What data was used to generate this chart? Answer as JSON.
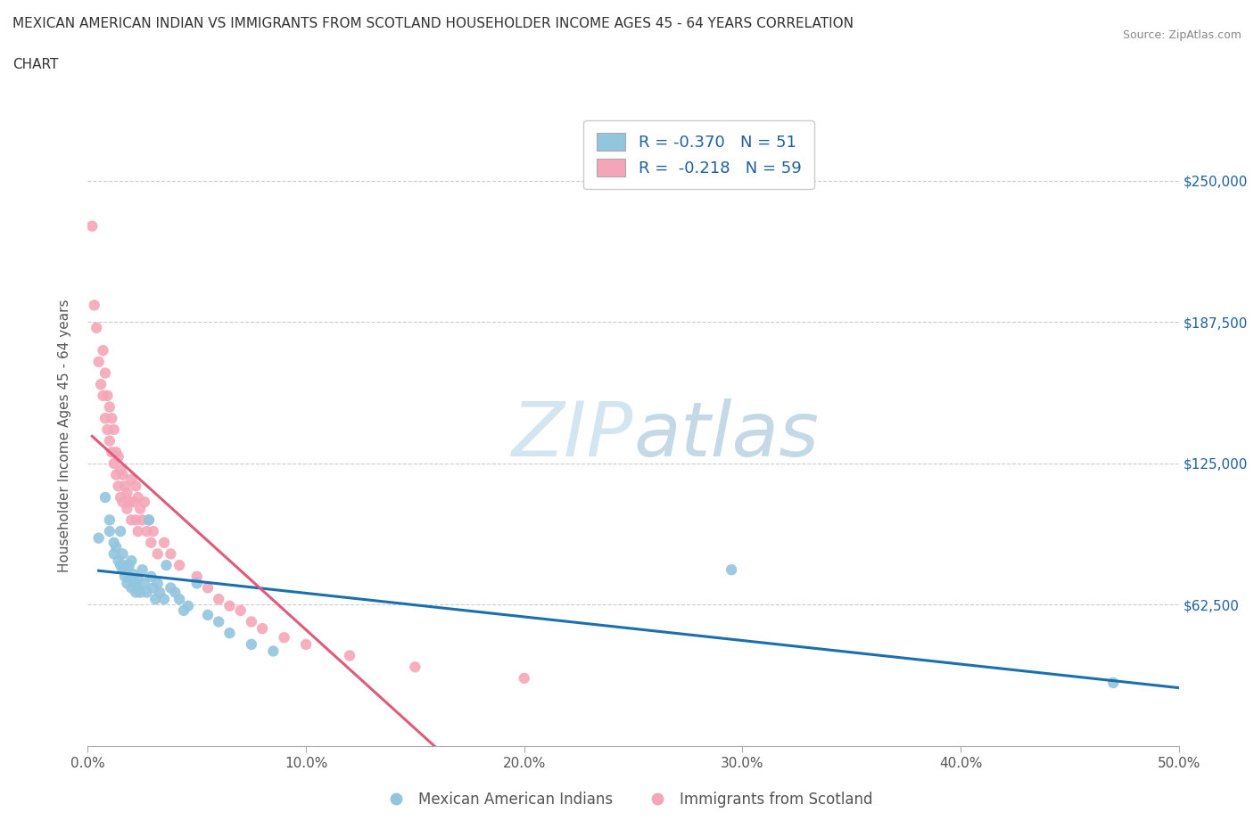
{
  "title_line1": "MEXICAN AMERICAN INDIAN VS IMMIGRANTS FROM SCOTLAND HOUSEHOLDER INCOME AGES 45 - 64 YEARS CORRELATION",
  "title_line2": "CHART",
  "source": "Source: ZipAtlas.com",
  "ylabel": "Householder Income Ages 45 - 64 years",
  "xlim": [
    0.0,
    0.5
  ],
  "ylim": [
    0,
    275000
  ],
  "yticks": [
    0,
    62500,
    125000,
    187500,
    250000
  ],
  "ytick_labels": [
    "",
    "$62,500",
    "$125,000",
    "$187,500",
    "$250,000"
  ],
  "xticks": [
    0.0,
    0.1,
    0.2,
    0.3,
    0.4,
    0.5
  ],
  "xtick_labels": [
    "0.0%",
    "10.0%",
    "20.0%",
    "30.0%",
    "40.0%",
    "50.0%"
  ],
  "blue_R": "-0.370",
  "blue_N": "51",
  "pink_R": "-0.218",
  "pink_N": "59",
  "blue_color": "#92c5de",
  "pink_color": "#f4a6b8",
  "blue_line_color": "#1a6faf",
  "pink_line_color": "#e05a7a",
  "legend_text_color": "#2060a0",
  "watermark_color": "#c8dff0",
  "blue_scatter_x": [
    0.005,
    0.008,
    0.01,
    0.01,
    0.012,
    0.012,
    0.013,
    0.014,
    0.015,
    0.015,
    0.016,
    0.016,
    0.017,
    0.017,
    0.018,
    0.018,
    0.019,
    0.019,
    0.02,
    0.02,
    0.021,
    0.021,
    0.022,
    0.022,
    0.023,
    0.023,
    0.024,
    0.025,
    0.026,
    0.027,
    0.028,
    0.029,
    0.03,
    0.031,
    0.032,
    0.033,
    0.035,
    0.036,
    0.038,
    0.04,
    0.042,
    0.044,
    0.046,
    0.05,
    0.055,
    0.06,
    0.065,
    0.075,
    0.085,
    0.295,
    0.47
  ],
  "blue_scatter_y": [
    92000,
    110000,
    100000,
    95000,
    90000,
    85000,
    88000,
    82000,
    95000,
    80000,
    78000,
    85000,
    80000,
    75000,
    78000,
    72000,
    80000,
    75000,
    82000,
    70000,
    76000,
    73000,
    72000,
    68000,
    74000,
    70000,
    68000,
    78000,
    72000,
    68000,
    100000,
    75000,
    70000,
    65000,
    72000,
    68000,
    65000,
    80000,
    70000,
    68000,
    65000,
    60000,
    62000,
    72000,
    58000,
    55000,
    50000,
    45000,
    42000,
    78000,
    28000
  ],
  "pink_scatter_x": [
    0.002,
    0.003,
    0.004,
    0.005,
    0.006,
    0.007,
    0.007,
    0.008,
    0.008,
    0.009,
    0.009,
    0.01,
    0.01,
    0.011,
    0.011,
    0.012,
    0.012,
    0.013,
    0.013,
    0.014,
    0.014,
    0.015,
    0.015,
    0.016,
    0.016,
    0.017,
    0.018,
    0.018,
    0.019,
    0.02,
    0.02,
    0.021,
    0.022,
    0.022,
    0.023,
    0.023,
    0.024,
    0.025,
    0.026,
    0.027,
    0.028,
    0.029,
    0.03,
    0.032,
    0.035,
    0.038,
    0.042,
    0.05,
    0.055,
    0.06,
    0.065,
    0.07,
    0.075,
    0.08,
    0.09,
    0.1,
    0.12,
    0.15,
    0.2
  ],
  "pink_scatter_y": [
    230000,
    195000,
    185000,
    170000,
    160000,
    175000,
    155000,
    165000,
    145000,
    155000,
    140000,
    150000,
    135000,
    145000,
    130000,
    140000,
    125000,
    130000,
    120000,
    128000,
    115000,
    122000,
    110000,
    120000,
    108000,
    115000,
    112000,
    105000,
    108000,
    118000,
    100000,
    108000,
    115000,
    100000,
    110000,
    95000,
    105000,
    100000,
    108000,
    95000,
    100000,
    90000,
    95000,
    85000,
    90000,
    85000,
    80000,
    75000,
    70000,
    65000,
    62000,
    60000,
    55000,
    52000,
    48000,
    45000,
    40000,
    35000,
    30000
  ]
}
